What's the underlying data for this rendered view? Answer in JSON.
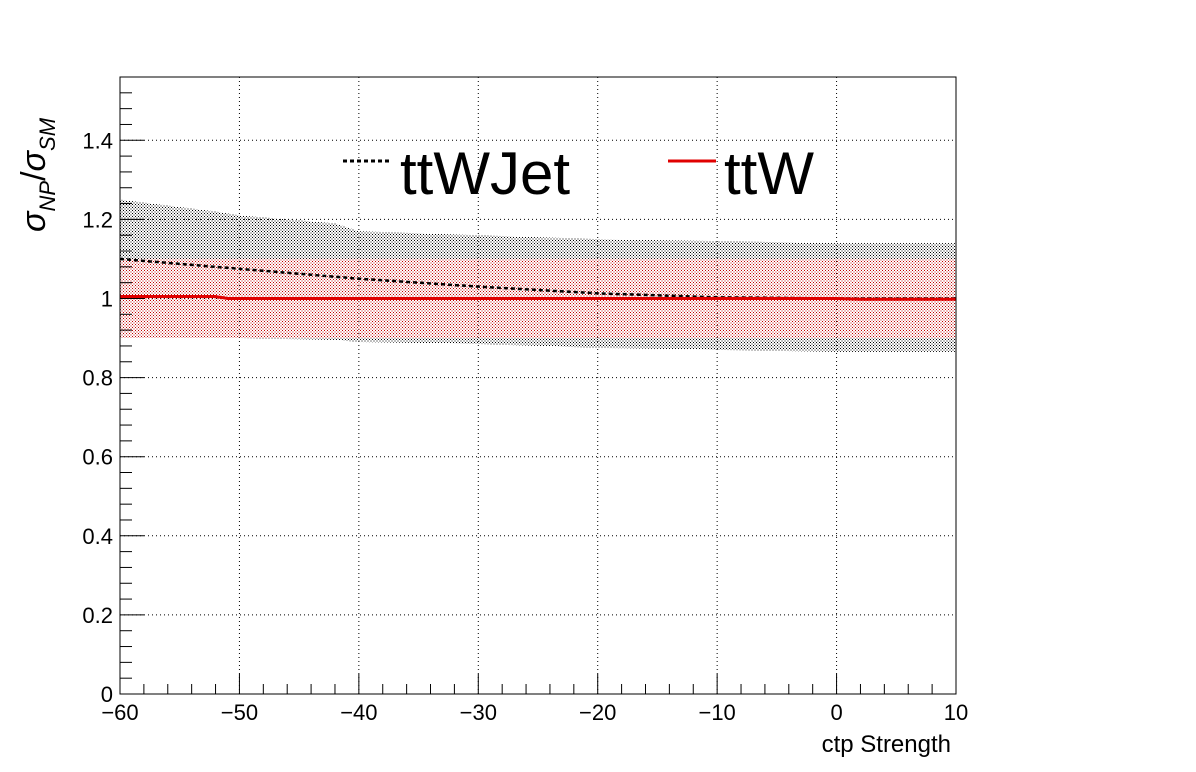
{
  "chart_data": {
    "type": "line",
    "title": "",
    "xlabel": "ctp Strength",
    "ylabel": "σ_NP/σ_SM",
    "xlim": [
      -60,
      10
    ],
    "ylim": [
      0,
      1.56
    ],
    "grid": true,
    "legend_position": "top",
    "x_ticks": [
      "−60",
      "−50",
      "−40",
      "−30",
      "−20",
      "−10",
      "0",
      "10"
    ],
    "y_ticks": [
      "0",
      "0.2",
      "0.4",
      "0.6",
      "0.8",
      "1",
      "1.2",
      "1.4"
    ],
    "series": [
      {
        "name": "ttWJet",
        "color": "#000000",
        "style": "dashed",
        "band_fill": "#000000",
        "x": [
          -60,
          -50,
          -40,
          -30,
          -20,
          -10,
          0,
          10
        ],
        "y": [
          1.1,
          1.075,
          1.05,
          1.03,
          1.013,
          1.003,
          1.0,
          1.0
        ],
        "band_x": [
          -60,
          -52,
          -50,
          -42,
          -40,
          -30,
          -20,
          -10,
          0,
          10
        ],
        "band_upper": [
          1.25,
          1.22,
          1.21,
          1.19,
          1.17,
          1.16,
          1.15,
          1.145,
          1.14,
          1.14
        ],
        "band_lower": [
          0.9,
          0.9,
          0.9,
          0.895,
          0.89,
          0.885,
          0.875,
          0.87,
          0.865,
          0.865
        ]
      },
      {
        "name": "ttW",
        "color": "#e00000",
        "style": "solid",
        "band_fill": "#cc0000",
        "x": [
          -60,
          -52,
          -51,
          -40,
          -30,
          -20,
          -10,
          0,
          2,
          10
        ],
        "y": [
          1.005,
          1.005,
          1.0,
          1.0,
          1.0,
          1.0,
          1.0,
          1.0,
          0.998,
          0.998
        ],
        "band_upper": [
          1.1,
          1.1,
          1.1,
          1.1,
          1.1,
          1.1,
          1.1,
          1.1,
          1.1,
          1.1
        ],
        "band_lower": [
          0.9,
          0.9,
          0.9,
          0.9,
          0.9,
          0.9,
          0.9,
          0.9,
          0.9,
          0.9
        ]
      }
    ]
  }
}
